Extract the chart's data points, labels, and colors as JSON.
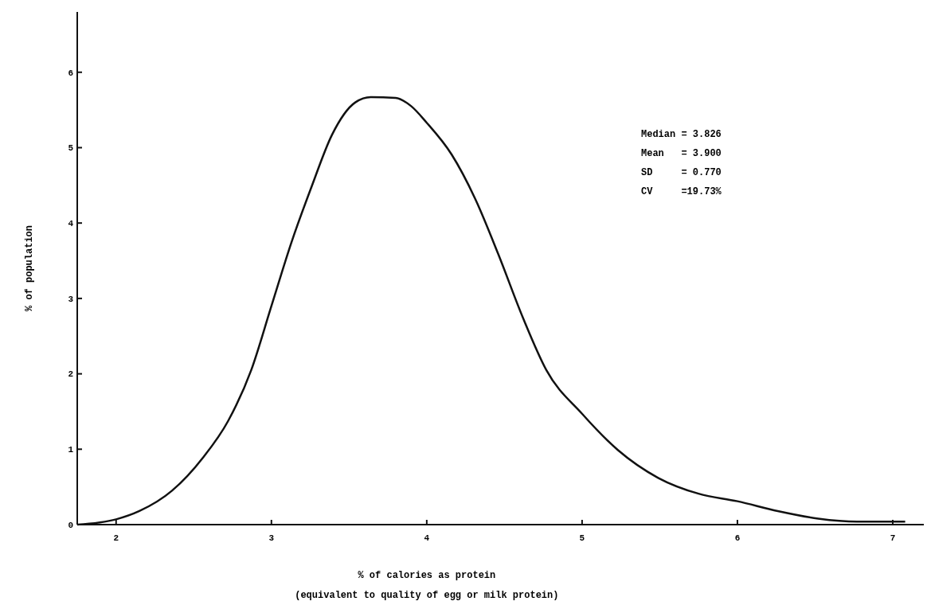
{
  "chart_data": {
    "type": "line",
    "xlabel": "% of calories as protein\n(equivalent to quality of egg or milk protein)",
    "ylabel": "% of population",
    "annotations": [
      "Median = 3.826",
      "Mean   = 3.900",
      "SD     = 0.770",
      "CV     =19.73%"
    ],
    "xlim": [
      1.75,
      7.2
    ],
    "ylim": [
      0,
      6.8
    ],
    "xticks": [
      2,
      3,
      4,
      5,
      6,
      7
    ],
    "yticks": [
      0,
      1,
      2,
      3,
      4,
      5,
      6
    ],
    "grid": false,
    "marker": "none",
    "line_style": "solid",
    "series": [
      {
        "color": "#111111",
        "x": [
          1.75,
          2.0,
          2.15,
          2.36,
          2.56,
          2.72,
          2.87,
          3.0,
          3.13,
          3.26,
          3.39,
          3.54,
          3.64,
          3.8,
          3.9,
          4.0,
          4.16,
          4.31,
          4.46,
          4.62,
          4.77,
          5.0,
          5.23,
          5.49,
          5.75,
          6.0,
          6.26,
          6.52,
          6.77,
          7.08
        ],
        "values": [
          0,
          0.07,
          0.18,
          0.45,
          0.89,
          1.37,
          2.05,
          2.9,
          3.75,
          4.49,
          5.17,
          5.6,
          5.67,
          5.66,
          5.55,
          5.33,
          4.91,
          4.33,
          3.59,
          2.74,
          2.05,
          1.47,
          0.99,
          0.62,
          0.41,
          0.31,
          0.18,
          0.08,
          0.04,
          0.04
        ]
      }
    ]
  }
}
